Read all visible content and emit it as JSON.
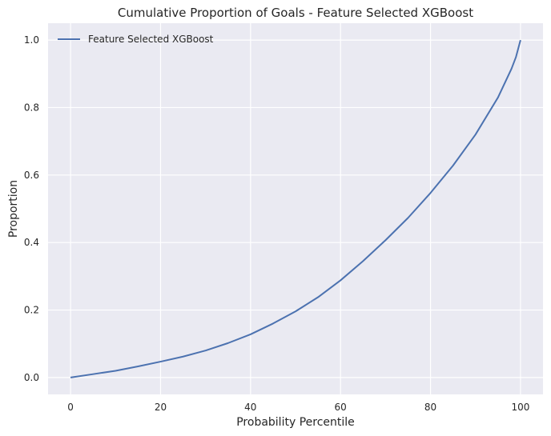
{
  "chart_data": {
    "type": "line",
    "title": "Cumulative Proportion of Goals - Feature Selected XGBoost",
    "xlabel": "Probability Percentile",
    "ylabel": "Proportion",
    "xlim": [
      -5,
      105
    ],
    "ylim": [
      -0.05,
      1.05
    ],
    "xticks": [
      0,
      20,
      40,
      60,
      80,
      100
    ],
    "xtick_labels": [
      "0",
      "20",
      "40",
      "60",
      "80",
      "100"
    ],
    "yticks": [
      0.0,
      0.2,
      0.4,
      0.6,
      0.8,
      1.0
    ],
    "ytick_labels": [
      "0.0",
      "0.2",
      "0.4",
      "0.6",
      "0.8",
      "1.0"
    ],
    "grid": true,
    "legend_position": "top-left",
    "series": [
      {
        "name": "Feature Selected XGBoost",
        "color": "#4c72b0",
        "x": [
          0,
          5,
          10,
          15,
          20,
          25,
          30,
          35,
          40,
          45,
          50,
          55,
          60,
          65,
          70,
          75,
          80,
          85,
          90,
          95,
          98,
          99,
          100
        ],
        "y": [
          0.0,
          0.01,
          0.02,
          0.033,
          0.047,
          0.062,
          0.08,
          0.102,
          0.128,
          0.16,
          0.196,
          0.238,
          0.288,
          0.345,
          0.407,
          0.473,
          0.547,
          0.628,
          0.72,
          0.83,
          0.915,
          0.95,
          1.0
        ]
      }
    ],
    "colors": {
      "plot_background": "#eaeaf2",
      "grid": "#ffffff",
      "text": "#262626"
    }
  }
}
